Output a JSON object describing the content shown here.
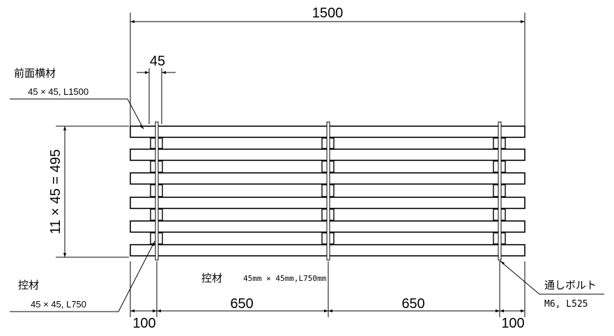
{
  "dimensions": {
    "overall_length": "1500",
    "member_width": "45",
    "height": "11 × 45 = 495",
    "left_offset": "100",
    "span_left": "650",
    "span_right": "650",
    "right_offset": "100"
  },
  "labels": {
    "front_member": {
      "name": "前面横材",
      "spec": "45 × 45,  L1500"
    },
    "back_member": {
      "name": "控材",
      "spec": "45 × 45,  L750"
    },
    "through_bolt": {
      "name": "通しボルト",
      "spec": "M6,  L525"
    },
    "center_note": {
      "name": "控材",
      "spec": "45mm × 45mm,L750mm"
    }
  }
}
